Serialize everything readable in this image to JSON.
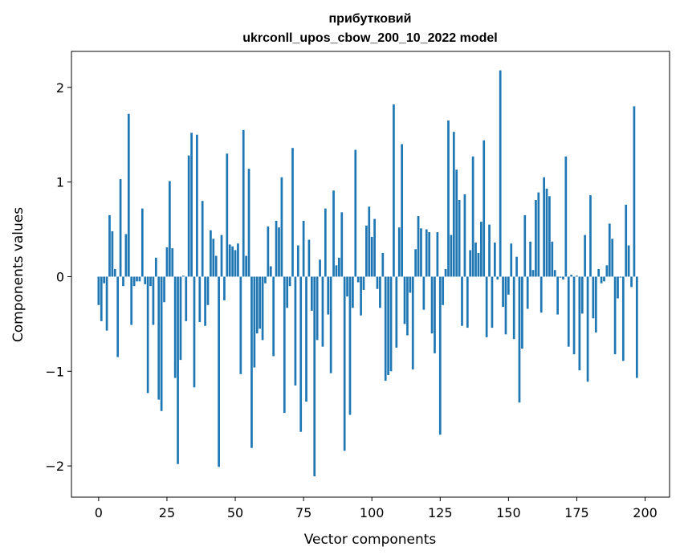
{
  "chart_data": {
    "type": "bar",
    "title_line1": "прибутковий",
    "title_line2": "ukrconll_upos_cbow_200_10_2022 model",
    "xlabel": "Vector components",
    "ylabel": "Components values",
    "xlim": [
      -9.95,
      208.95
    ],
    "ylim": [
      -2.33,
      2.38
    ],
    "xticks": [
      0,
      25,
      50,
      75,
      100,
      125,
      150,
      175,
      200
    ],
    "xtick_labels": [
      "0",
      "25",
      "50",
      "75",
      "100",
      "125",
      "150",
      "175",
      "200"
    ],
    "yticks": [
      -2,
      -1,
      0,
      1,
      2
    ],
    "ytick_labels": [
      "−2",
      "−1",
      "0",
      "1",
      "2"
    ],
    "bar_color": "#1f77b4",
    "grid": false,
    "legend": "none",
    "values": [
      -0.3,
      -0.47,
      -0.07,
      -0.57,
      0.65,
      0.48,
      0.08,
      -0.85,
      1.03,
      -0.1,
      0.45,
      1.72,
      -0.51,
      -0.1,
      -0.05,
      -0.05,
      0.72,
      -0.08,
      -1.23,
      -0.1,
      -0.51,
      0.2,
      -1.3,
      -1.42,
      -0.27,
      0.31,
      1.01,
      0.3,
      -1.07,
      -1.98,
      -0.88,
      0.01,
      -0.47,
      1.28,
      1.52,
      -1.17,
      1.5,
      -0.48,
      0.8,
      -0.52,
      -0.3,
      0.49,
      0.4,
      0.22,
      -2.01,
      0.44,
      -0.25,
      1.3,
      0.34,
      0.32,
      0.28,
      0.35,
      -1.03,
      1.55,
      0.22,
      1.14,
      -1.81,
      -0.96,
      -0.6,
      -0.55,
      -0.67,
      -0.07,
      0.53,
      0.11,
      -0.84,
      0.59,
      0.52,
      1.05,
      -1.44,
      -0.33,
      -0.1,
      1.36,
      -1.15,
      0.33,
      -1.64,
      0.59,
      -1.32,
      0.39,
      -0.36,
      -2.11,
      -0.67,
      0.18,
      -0.74,
      0.72,
      -0.4,
      -1.02,
      0.91,
      0.12,
      0.2,
      0.68,
      -1.84,
      -0.21,
      -1.46,
      -0.33,
      1.34,
      -0.06,
      -0.41,
      -0.14,
      0.54,
      0.74,
      0.42,
      0.61,
      -0.13,
      -0.33,
      0.25,
      -1.1,
      -1.04,
      -1.0,
      1.82,
      -0.75,
      0.52,
      1.4,
      -0.5,
      -0.62,
      -0.17,
      -0.98,
      0.29,
      0.64,
      0.51,
      -0.35,
      0.5,
      0.47,
      -0.6,
      -0.81,
      0.47,
      -1.67,
      -0.3,
      0.08,
      1.65,
      0.44,
      1.53,
      1.13,
      0.81,
      -0.52,
      0.87,
      -0.54,
      0.28,
      1.27,
      0.36,
      0.25,
      0.58,
      1.44,
      -0.64,
      0.55,
      -0.54,
      0.36,
      -0.03,
      2.18,
      -0.32,
      -0.61,
      -0.19,
      0.35,
      -0.66,
      0.21,
      -1.33,
      -0.76,
      0.65,
      -0.34,
      0.37,
      0.07,
      0.81,
      0.89,
      -0.38,
      1.05,
      0.93,
      0.85,
      0.37,
      0.07,
      -0.4,
      -0.01,
      -0.03,
      1.27,
      -0.74,
      0.02,
      -0.82,
      0.01,
      -0.99,
      -0.39,
      0.44,
      -1.11,
      0.86,
      -0.44,
      -0.59,
      0.08,
      -0.07,
      -0.05,
      0.12,
      0.56,
      0.4,
      -0.82,
      -0.23,
      -0.01,
      -0.89,
      0.76,
      0.33,
      -0.11,
      1.8,
      -1.07
    ]
  }
}
